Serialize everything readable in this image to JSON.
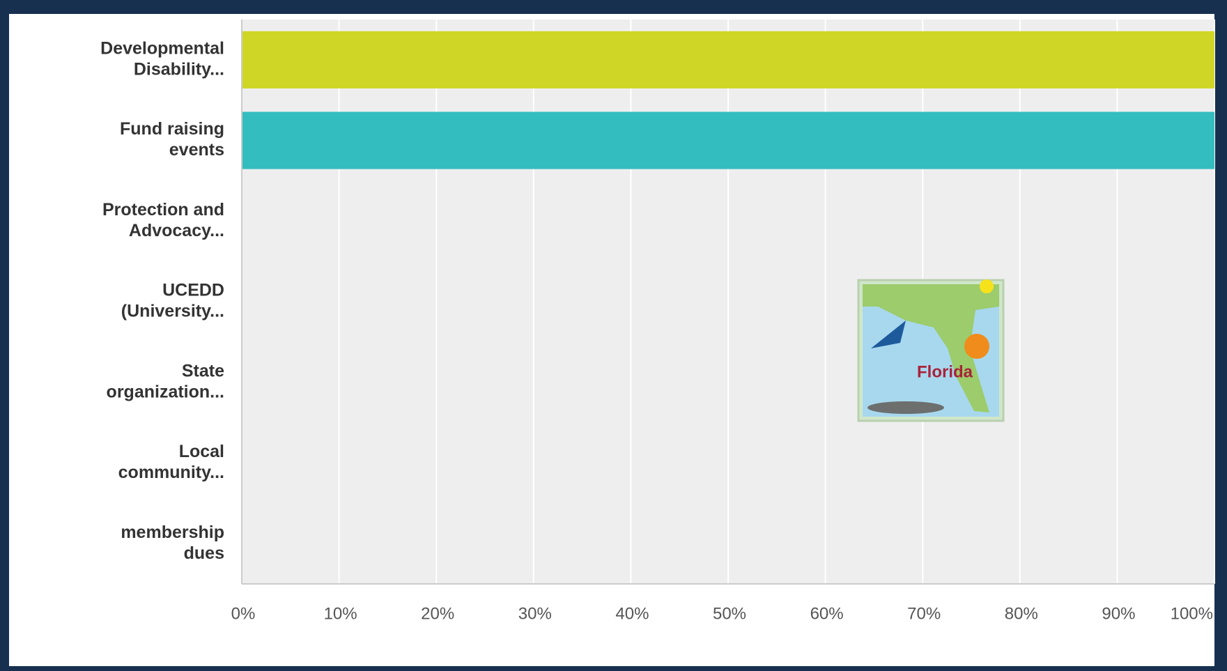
{
  "chart_data": {
    "type": "hbar",
    "categories": [
      [
        "Developmental",
        "Disability..."
      ],
      [
        "Fund raising",
        "events"
      ],
      [
        "Protection and",
        "Advocacy..."
      ],
      [
        "UCEDD",
        "(University..."
      ],
      [
        "State",
        "organization..."
      ],
      [
        "Local",
        "community..."
      ],
      [
        "membership",
        "dues"
      ]
    ],
    "values": [
      100,
      100,
      0,
      0,
      0,
      0,
      0
    ],
    "colors": [
      "#cfd626",
      "#33bdbf",
      "#cfd626",
      "#33bdbf",
      "#cfd626",
      "#33bdbf",
      "#cfd626"
    ],
    "xlim": [
      0,
      100
    ],
    "xticks": [
      {
        "value": 0,
        "label": "0%"
      },
      {
        "value": 10,
        "label": "10%"
      },
      {
        "value": 20,
        "label": "20%"
      },
      {
        "value": 30,
        "label": "30%"
      },
      {
        "value": 40,
        "label": "40%"
      },
      {
        "value": 50,
        "label": "50%"
      },
      {
        "value": 60,
        "label": "60%"
      },
      {
        "value": 70,
        "label": "70%"
      },
      {
        "value": 80,
        "label": "80%"
      },
      {
        "value": 90,
        "label": "90%"
      },
      {
        "value": 100,
        "label": "100%"
      }
    ],
    "grid": true,
    "image_caption": "Florida"
  }
}
